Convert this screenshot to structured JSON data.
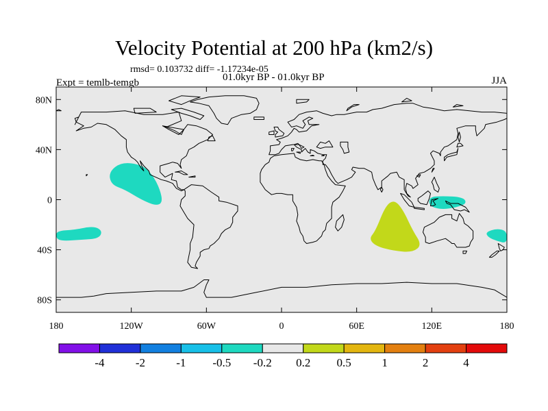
{
  "title": "Velocity Potential at 200 hPa (km2/s)",
  "stats": "rmsd= 0.103732 diff= -1.17234e-05",
  "period": "01.0kyr BP - 01.0kyr BP",
  "experiment": "Expt = temlb-temgb",
  "season": "JJA",
  "map": {
    "projection": "cylindrical equidistant",
    "background_color": "#e8e8e8",
    "lat_ticks": [
      {
        "value": 80,
        "label": "80N"
      },
      {
        "value": 40,
        "label": "40N"
      },
      {
        "value": 0,
        "label": "0"
      },
      {
        "value": -40,
        "label": "40S"
      },
      {
        "value": -80,
        "label": "80S"
      }
    ],
    "lon_ticks": [
      {
        "value": -180,
        "label": "180"
      },
      {
        "value": -120,
        "label": "120W"
      },
      {
        "value": -60,
        "label": "60W"
      },
      {
        "value": 0,
        "label": "0"
      },
      {
        "value": 60,
        "label": "60E"
      },
      {
        "value": 120,
        "label": "120E"
      },
      {
        "value": 180,
        "label": "180"
      }
    ],
    "anomalies": [
      {
        "name": "east-pacific-negative",
        "class": "-0.5 to -0.2",
        "color": "#1ed9c0",
        "outline": [
          [
            -138,
            22
          ],
          [
            -128,
            30
          ],
          [
            -112,
            28
          ],
          [
            -103,
            20
          ],
          [
            -97,
            8
          ],
          [
            -95,
            -2
          ],
          [
            -100,
            -5
          ],
          [
            -112,
            0
          ],
          [
            -125,
            8
          ],
          [
            -136,
            12
          ]
        ]
      },
      {
        "name": "south-pacific-negative",
        "class": "-0.5 to -0.2",
        "color": "#1ed9c0",
        "outline": [
          [
            -180,
            -25
          ],
          [
            -165,
            -24
          ],
          [
            -150,
            -21
          ],
          [
            -143,
            -25
          ],
          [
            -146,
            -31
          ],
          [
            -160,
            -32
          ],
          [
            -175,
            -33
          ],
          [
            -180,
            -31
          ]
        ]
      },
      {
        "name": "indian-ocean-positive",
        "class": "0.2 to 0.5",
        "color": "#c2d81a",
        "outline": [
          [
            75,
            -25
          ],
          [
            83,
            -5
          ],
          [
            90,
            0
          ],
          [
            97,
            -8
          ],
          [
            105,
            -25
          ],
          [
            112,
            -36
          ],
          [
            105,
            -42
          ],
          [
            90,
            -41
          ],
          [
            75,
            -37
          ],
          [
            70,
            -31
          ]
        ]
      },
      {
        "name": "maritime-continent-negative",
        "class": "-0.5 to -0.2",
        "color": "#1ed9c0",
        "outline": [
          [
            118,
            2
          ],
          [
            128,
            3
          ],
          [
            145,
            2
          ],
          [
            148,
            -3
          ],
          [
            140,
            -6
          ],
          [
            128,
            -8
          ],
          [
            118,
            -5
          ]
        ]
      },
      {
        "name": "tasman-negative",
        "class": "-0.5 to -0.2",
        "color": "#1ed9c0",
        "outline": [
          [
            163,
            -26
          ],
          [
            172,
            -23
          ],
          [
            180,
            -25
          ],
          [
            180,
            -35
          ],
          [
            172,
            -33
          ],
          [
            165,
            -30
          ]
        ]
      }
    ]
  },
  "colorbar": {
    "colors": [
      "#8210e8",
      "#2030d8",
      "#1280e0",
      "#18c0e8",
      "#1ed9c0",
      "#e8e8e8",
      "#c2d81a",
      "#e3b610",
      "#e38010",
      "#e34010",
      "#e30a0a"
    ],
    "labels": [
      "-4",
      "-2",
      "-1",
      "-0.5",
      "-0.2",
      "0.2",
      "0.5",
      "1",
      "2",
      "4"
    ]
  }
}
